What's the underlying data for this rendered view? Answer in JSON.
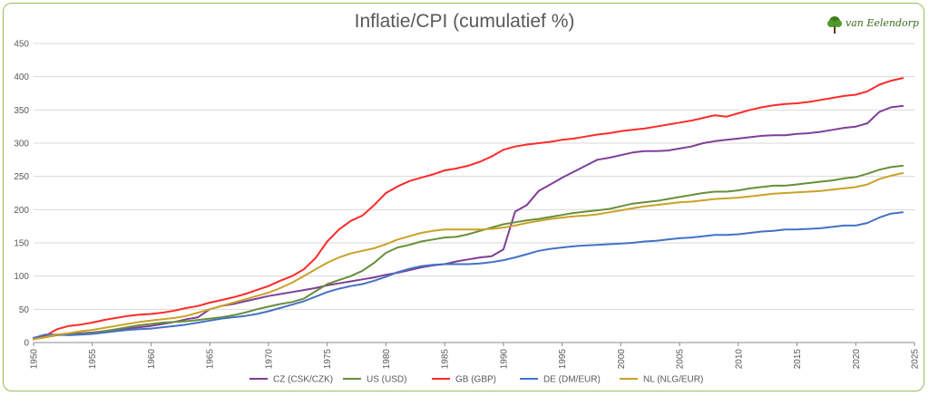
{
  "chart_data": {
    "type": "line",
    "title": "Inflatie/CPI (cumulatief %)",
    "xlabel": "",
    "ylabel": "",
    "xlim": [
      1950,
      2025
    ],
    "ylim": [
      0,
      450
    ],
    "xticks": [
      1950,
      1955,
      1960,
      1965,
      1970,
      1975,
      1980,
      1985,
      1990,
      1995,
      2000,
      2005,
      2010,
      2015,
      2020,
      2025
    ],
    "yticks": [
      0,
      50,
      100,
      150,
      200,
      250,
      300,
      350,
      400,
      450
    ],
    "grid": "horizontal",
    "legend_position": "bottom",
    "x": [
      1950,
      1951,
      1952,
      1953,
      1954,
      1955,
      1956,
      1957,
      1958,
      1959,
      1960,
      1961,
      1962,
      1963,
      1964,
      1965,
      1966,
      1967,
      1968,
      1969,
      1970,
      1971,
      1972,
      1973,
      1974,
      1975,
      1976,
      1977,
      1978,
      1979,
      1980,
      1981,
      1982,
      1983,
      1984,
      1985,
      1986,
      1987,
      1988,
      1989,
      1990,
      1991,
      1992,
      1993,
      1994,
      1995,
      1996,
      1997,
      1998,
      1999,
      2000,
      2001,
      2002,
      2003,
      2004,
      2005,
      2006,
      2007,
      2008,
      2009,
      2010,
      2011,
      2012,
      2013,
      2014,
      2015,
      2016,
      2017,
      2018,
      2019,
      2020,
      2021,
      2022,
      2023,
      2024
    ],
    "series": [
      {
        "name": "CZ (CSK/CZK)",
        "color": "#7f3f98",
        "values": [
          7,
          10,
          12,
          13,
          14,
          15,
          17,
          19,
          21,
          23,
          25,
          28,
          31,
          35,
          38,
          50,
          55,
          58,
          62,
          66,
          70,
          73,
          76,
          79,
          82,
          86,
          89,
          92,
          95,
          98,
          102,
          105,
          109,
          113,
          116,
          118,
          122,
          125,
          128,
          130,
          140,
          197,
          207,
          228,
          238,
          248,
          257,
          266,
          275,
          278,
          282,
          286,
          288,
          288,
          289,
          292,
          295,
          300,
          303,
          305,
          307,
          309,
          311,
          312,
          312,
          314,
          315,
          317,
          320,
          323,
          325,
          330,
          347,
          354,
          356
        ]
      },
      {
        "name": "US (USD)",
        "color": "#6a8e3a",
        "values": [
          5,
          8,
          11,
          12,
          13,
          14,
          17,
          20,
          23,
          26,
          28,
          30,
          31,
          32,
          34,
          36,
          38,
          41,
          45,
          50,
          54,
          58,
          61,
          66,
          77,
          88,
          94,
          100,
          108,
          120,
          135,
          143,
          147,
          152,
          155,
          158,
          159,
          163,
          168,
          173,
          178,
          181,
          184,
          186,
          189,
          192,
          195,
          197,
          199,
          201,
          205,
          209,
          211,
          213,
          216,
          219,
          222,
          225,
          227,
          227,
          229,
          232,
          234,
          236,
          236,
          238,
          240,
          242,
          244,
          247,
          249,
          254,
          260,
          264,
          266
        ]
      },
      {
        "name": "GB (GBP)",
        "color": "#ff2a2a",
        "values": [
          5,
          10,
          20,
          25,
          27,
          30,
          34,
          37,
          40,
          42,
          43,
          45,
          48,
          52,
          55,
          60,
          64,
          68,
          73,
          79,
          85,
          93,
          100,
          110,
          127,
          152,
          170,
          183,
          191,
          207,
          225,
          235,
          243,
          248,
          253,
          259,
          262,
          266,
          272,
          280,
          290,
          295,
          298,
          300,
          302,
          305,
          307,
          310,
          313,
          315,
          318,
          320,
          322,
          325,
          328,
          331,
          334,
          338,
          342,
          340,
          345,
          350,
          354,
          357,
          359,
          360,
          362,
          365,
          368,
          371,
          373,
          378,
          388,
          394,
          398
        ]
      },
      {
        "name": "DE (DM/EUR)",
        "color": "#4472c4",
        "values": [
          7,
          12,
          12,
          11,
          12,
          13,
          15,
          17,
          19,
          20,
          21,
          23,
          25,
          27,
          30,
          33,
          36,
          38,
          40,
          43,
          47,
          52,
          57,
          62,
          69,
          76,
          81,
          85,
          88,
          93,
          99,
          106,
          111,
          115,
          117,
          118,
          118,
          118,
          119,
          121,
          124,
          128,
          133,
          138,
          141,
          143,
          145,
          146,
          147,
          148,
          149,
          150,
          152,
          153,
          155,
          157,
          158,
          160,
          162,
          162,
          163,
          165,
          167,
          168,
          170,
          170,
          171,
          172,
          174,
          176,
          176,
          180,
          188,
          194,
          196
        ]
      },
      {
        "name": "NL (NLG/EUR)",
        "color": "#c9a227",
        "values": [
          5,
          8,
          12,
          14,
          17,
          19,
          22,
          25,
          28,
          31,
          33,
          35,
          37,
          40,
          45,
          50,
          55,
          60,
          65,
          70,
          75,
          82,
          90,
          100,
          110,
          120,
          128,
          134,
          138,
          142,
          148,
          155,
          160,
          165,
          168,
          170,
          170,
          170,
          170,
          171,
          173,
          176,
          180,
          183,
          186,
          188,
          190,
          191,
          193,
          196,
          199,
          202,
          205,
          207,
          209,
          211,
          212,
          214,
          216,
          217,
          218,
          220,
          222,
          224,
          225,
          226,
          227,
          228,
          230,
          232,
          234,
          238,
          246,
          251,
          255
        ]
      }
    ]
  },
  "logo": {
    "name": "tree-logo",
    "text": "van Eelendorp"
  }
}
